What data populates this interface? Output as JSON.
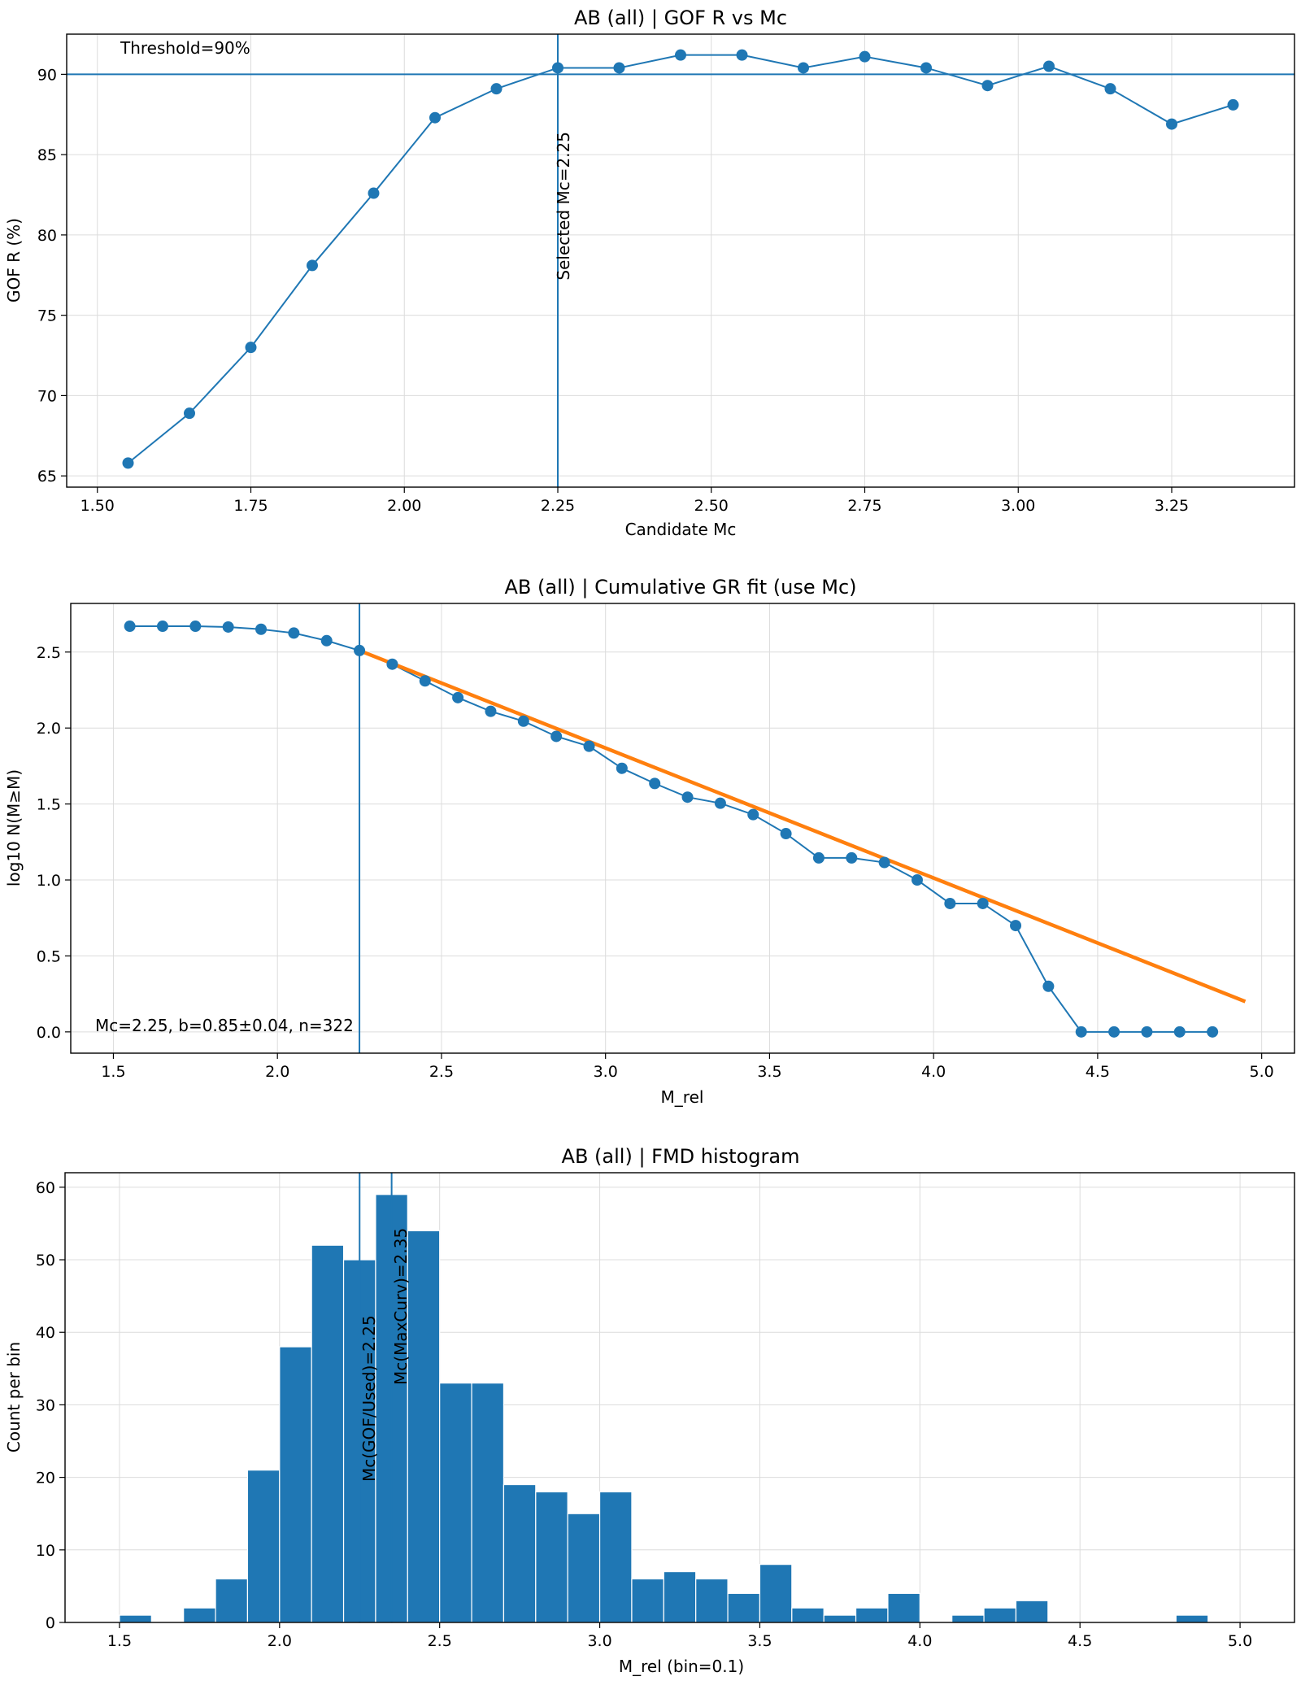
{
  "chart_data": [
    {
      "type": "line",
      "title": "AB (all) | GOF R vs Mc",
      "xlabel": "Candidate Mc",
      "ylabel": "GOF R (%)",
      "xlim": [
        1.45,
        3.45
      ],
      "ylim": [
        64.3,
        92.5
      ],
      "xticks": [
        "1.50",
        "1.75",
        "2.00",
        "2.25",
        "2.50",
        "2.75",
        "3.00",
        "3.25"
      ],
      "yticks": [
        "65",
        "70",
        "75",
        "80",
        "85",
        "90"
      ],
      "series": [
        {
          "name": "GOF R",
          "x": [
            1.55,
            1.65,
            1.75,
            1.85,
            1.95,
            2.05,
            2.15,
            2.25,
            2.35,
            2.45,
            2.55,
            2.65,
            2.75,
            2.85,
            2.95,
            3.05,
            3.15,
            3.25,
            3.35
          ],
          "y": [
            65.8,
            68.9,
            73.0,
            78.1,
            82.6,
            87.3,
            89.1,
            90.4,
            90.4,
            91.2,
            91.2,
            90.4,
            91.1,
            90.4,
            89.3,
            90.5,
            89.1,
            86.9,
            88.1
          ]
        }
      ],
      "hline": {
        "y": 90
      },
      "vline": {
        "x": 2.25
      },
      "annotations": {
        "threshold": "Threshold=90%",
        "selected": "Selected Mc=2.25"
      },
      "color": "#1f77b4"
    },
    {
      "type": "line",
      "title": "AB (all) | Cumulative GR fit (use Mc)",
      "xlabel": "M_rel",
      "ylabel": "log10 N(M≥M)",
      "xlim": [
        1.37,
        5.1
      ],
      "ylim": [
        -0.14,
        2.82
      ],
      "xticks": [
        "1.5",
        "2.0",
        "2.5",
        "3.0",
        "3.5",
        "4.0",
        "4.5",
        "5.0"
      ],
      "yticks": [
        "0.0",
        "0.5",
        "1.0",
        "1.5",
        "2.0",
        "2.5"
      ],
      "series": [
        {
          "name": "log10 N(M≥M)",
          "x": [
            1.55,
            1.65,
            1.75,
            1.85,
            1.95,
            2.05,
            2.15,
            2.25,
            2.35,
            2.45,
            2.55,
            2.65,
            2.75,
            2.85,
            2.95,
            3.05,
            3.15,
            3.25,
            3.35,
            3.45,
            3.55,
            3.65,
            3.75,
            3.85,
            3.95,
            4.05,
            4.15,
            4.25,
            4.35,
            4.45,
            4.55,
            4.65,
            4.75,
            4.85
          ],
          "y": [
            2.67,
            2.67,
            2.67,
            2.665,
            2.65,
            2.625,
            2.575,
            2.51,
            2.42,
            2.31,
            2.2,
            2.11,
            2.045,
            1.945,
            1.88,
            1.735,
            1.635,
            1.545,
            1.505,
            1.43,
            1.305,
            1.145,
            1.145,
            1.115,
            1.0,
            0.845,
            0.845,
            0.7,
            0.3,
            0.0,
            0.0,
            0.0,
            0.0,
            0.0
          ]
        }
      ],
      "fit_line": {
        "x": [
          2.25,
          4.95
        ],
        "y": [
          2.51,
          0.2
        ],
        "color": "#ff7f0e"
      },
      "vline": {
        "x": 2.25
      },
      "annotations": {
        "stats": "Mc=2.25, b=0.85±0.04, n=322"
      },
      "color": "#1f77b4"
    },
    {
      "type": "bar",
      "title": "AB (all) | FMD histogram",
      "xlabel": "M_rel (bin=0.1)",
      "ylabel": "Count per bin",
      "xlim": [
        1.33,
        5.17
      ],
      "ylim": [
        0,
        62
      ],
      "xticks": [
        "1.5",
        "2.0",
        "2.5",
        "3.0",
        "3.5",
        "4.0",
        "4.5",
        "5.0"
      ],
      "yticks": [
        "0",
        "10",
        "20",
        "30",
        "40",
        "50",
        "60"
      ],
      "bins": [
        [
          1.5,
          1
        ],
        [
          1.6,
          0
        ],
        [
          1.7,
          2
        ],
        [
          1.8,
          6
        ],
        [
          1.9,
          21
        ],
        [
          2.0,
          38
        ],
        [
          2.1,
          52
        ],
        [
          2.2,
          50
        ],
        [
          2.3,
          59
        ],
        [
          2.4,
          54
        ],
        [
          2.5,
          33
        ],
        [
          2.6,
          33
        ],
        [
          2.7,
          19
        ],
        [
          2.8,
          18
        ],
        [
          2.9,
          15
        ],
        [
          3.0,
          18
        ],
        [
          3.1,
          6
        ],
        [
          3.2,
          7
        ],
        [
          3.3,
          6
        ],
        [
          3.4,
          4
        ],
        [
          3.5,
          8
        ],
        [
          3.6,
          2
        ],
        [
          3.7,
          1
        ],
        [
          3.8,
          2
        ],
        [
          3.9,
          4
        ],
        [
          4.0,
          0
        ],
        [
          4.1,
          1
        ],
        [
          4.2,
          2
        ],
        [
          4.3,
          3
        ],
        [
          4.4,
          0
        ],
        [
          4.5,
          0
        ],
        [
          4.6,
          0
        ],
        [
          4.7,
          0
        ],
        [
          4.8,
          1
        ],
        [
          4.9,
          0
        ]
      ],
      "bin_width": 0.1,
      "vlines": [
        {
          "x": 2.25,
          "label": "Mc(GOF/Used)=2.25"
        },
        {
          "x": 2.35,
          "label": "Mc(MaxCurv)=2.35"
        }
      ],
      "color": "#1f77b4"
    }
  ]
}
